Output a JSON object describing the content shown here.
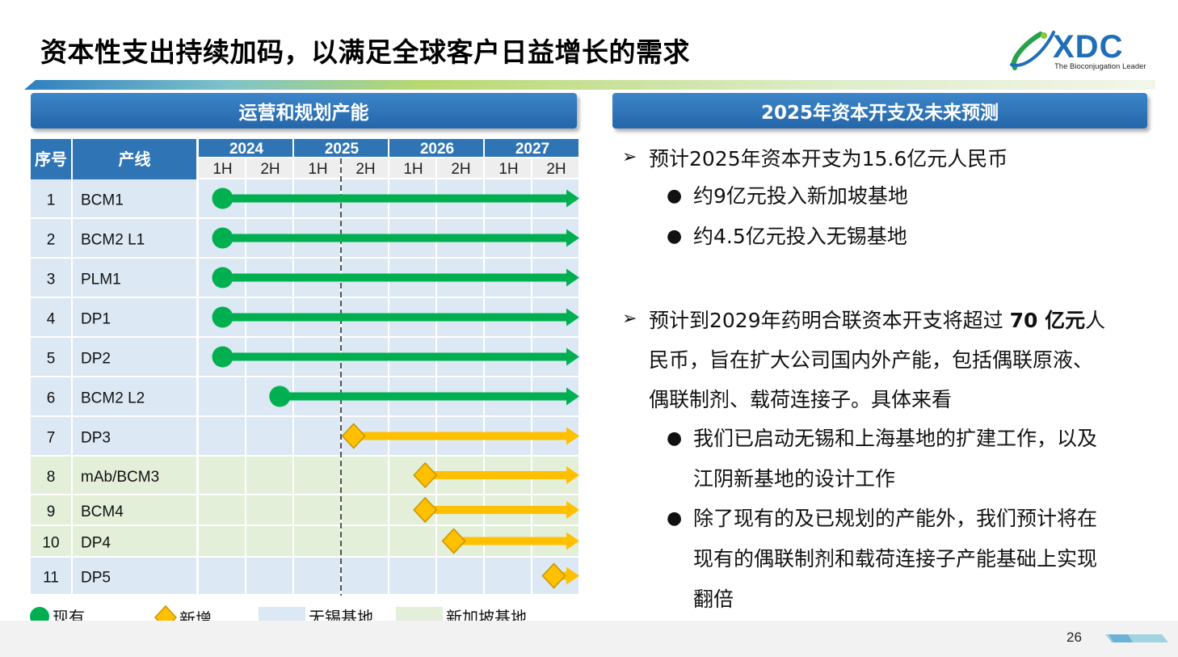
{
  "title": "资本性支出持续加码，以满足全球客户日益增长的需求",
  "logo": {
    "name": "XDC",
    "tagline": "The Bioconjugation Leader"
  },
  "left_panel": {
    "heading": "运营和规划产能",
    "col_seq": "序号",
    "col_line": "产线",
    "years": [
      "2024",
      "2025",
      "2026",
      "2027"
    ],
    "halves": [
      "1H",
      "2H",
      "1H",
      "2H",
      "1H",
      "2H",
      "1H",
      "2H"
    ],
    "rows": [
      {
        "seq": "1",
        "line": "BCM1",
        "site": "wuxi",
        "type": "existing",
        "start_half": 0.5
      },
      {
        "seq": "2",
        "line": "BCM2 L1",
        "site": "wuxi",
        "type": "existing",
        "start_half": 0.5
      },
      {
        "seq": "3",
        "line": "PLM1",
        "site": "wuxi",
        "type": "existing",
        "start_half": 0.5
      },
      {
        "seq": "4",
        "line": "DP1",
        "site": "wuxi",
        "type": "existing",
        "start_half": 0.5
      },
      {
        "seq": "5",
        "line": "DP2",
        "site": "wuxi",
        "type": "existing",
        "start_half": 0.5
      },
      {
        "seq": "6",
        "line": "BCM2 L2",
        "site": "wuxi",
        "type": "existing",
        "start_half": 1.7
      },
      {
        "seq": "7",
        "line": "DP3",
        "site": "wuxi",
        "type": "new",
        "start_half": 3.25
      },
      {
        "seq": "8",
        "line": "mAb/BCM3",
        "site": "singapore",
        "type": "new",
        "start_half": 4.75
      },
      {
        "seq": "9",
        "line": "BCM4",
        "site": "singapore",
        "type": "new",
        "start_half": 4.75
      },
      {
        "seq": "10",
        "line": "DP4",
        "site": "singapore",
        "type": "new",
        "start_half": 5.35
      },
      {
        "seq": "11",
        "line": "DP5",
        "site": "wuxi",
        "type": "new",
        "start_half": 7.45
      }
    ],
    "today_marker_half": 3.0,
    "legend": {
      "existing": "现有",
      "new": "新增",
      "wuxi": "无锡基地",
      "singapore": "新加坡基地"
    }
  },
  "right_panel": {
    "heading": "2025年资本开支及未来预测",
    "b1_line1": "预计2025年资本开支为15.6亿元人民币",
    "b1_sub1": "约9亿元投入新加坡基地",
    "b1_sub2": "约4.5亿元投入无锡基地",
    "b2_line1_pre": "预计到2029年药明合联资本开支将超过 ",
    "b2_line1_bold": "70 亿元",
    "b2_line1_post": "人",
    "b2_line2": "民币，旨在扩大公司国内外产能，包括偶联原液、",
    "b2_line3": "偶联制剂、载荷连接子。具体来看",
    "b2_sub1_l1": "我们已启动无锡和上海基地的扩建工作，以及",
    "b2_sub1_l2": "江阴新基地的设计工作",
    "b2_sub2_l1": "除了现有的及已规划的产能外，我们预计将在",
    "b2_sub2_l2": "现有的偶联制剂和载荷连接子产能基础上实现",
    "b2_sub2_l3": "翻倍"
  },
  "colors": {
    "header_blue": "#2f75b5",
    "wuxi_bg": "#dce8f4",
    "singapore_bg": "#e3efd9",
    "existing_green": "#00b050",
    "new_gold": "#ffc000"
  },
  "page_number": "26"
}
